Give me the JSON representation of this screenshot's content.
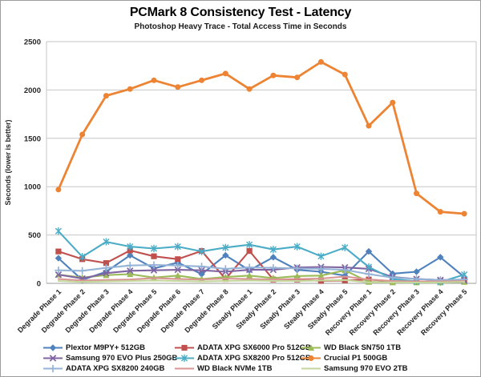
{
  "chart_data": {
    "type": "line",
    "title": "PCMark 8 Consistency Test - Latency",
    "subtitle": "Photoshop Heavy Trace - Total Access Time in Seconds",
    "ylabel": "Seconds (lower is better)",
    "xlabel": "",
    "ylim": [
      0,
      2500
    ],
    "ytick_interval": 500,
    "grid": "horizontal-only",
    "legend_position": "bottom",
    "categories": [
      "Degrade Phase 1",
      "Degrade Phase 2",
      "Degrade Phase 3",
      "Degrade Phase 4",
      "Degrade Phase 5",
      "Degrade Phase 6",
      "Degrade Phase 7",
      "Degrade Phase 8",
      "Steady Phase 1",
      "Steady Phase 2",
      "Steady Phase 3",
      "Steady Phase 4",
      "Steady Phase 5",
      "Recovery Phase 1",
      "Recovery Phase 2",
      "Recovery Phase 3",
      "Recovery Phase 4",
      "Recovery Phase 5"
    ],
    "series": [
      {
        "name": "Plextor M9PY+ 512GB",
        "color": "#4F81BD",
        "marker": "diamond",
        "values": [
          260,
          35,
          120,
          290,
          155,
          215,
          95,
          290,
          135,
          270,
          140,
          120,
          80,
          330,
          100,
          120,
          270,
          65
        ]
      },
      {
        "name": "ADATA XPG SX6000 Pro 512GB",
        "color": "#C0504D",
        "marker": "square",
        "values": [
          330,
          250,
          210,
          340,
          280,
          250,
          335,
          45,
          335,
          40,
          40,
          25,
          30,
          40,
          20,
          15,
          25,
          35
        ]
      },
      {
        "name": "WD Black SN750 1TB",
        "color": "#9BBB59",
        "marker": "triangle",
        "values": [
          90,
          60,
          85,
          95,
          60,
          80,
          45,
          65,
          80,
          55,
          75,
          80,
          135,
          15,
          10,
          10,
          10,
          15
        ]
      },
      {
        "name": "Samsung 970 EVO Plus 250GB",
        "color": "#8064A2",
        "marker": "x",
        "values": [
          90,
          50,
          105,
          130,
          135,
          140,
          135,
          120,
          140,
          140,
          165,
          170,
          165,
          150,
          65,
          45,
          35,
          30
        ]
      },
      {
        "name": "ADATA XPG SX8200 Pro 512GB",
        "color": "#4BACC6",
        "marker": "asterisk",
        "values": [
          540,
          275,
          430,
          380,
          360,
          380,
          330,
          370,
          400,
          350,
          380,
          280,
          370,
          170,
          45,
          20,
          15,
          90
        ]
      },
      {
        "name": "Crucial P1 500GB",
        "color": "#ED8433",
        "marker": "circle",
        "values": [
          970,
          1540,
          1940,
          2010,
          2100,
          2030,
          2100,
          2170,
          2010,
          2150,
          2130,
          2290,
          2160,
          1630,
          1870,
          930,
          740,
          720
        ]
      },
      {
        "name": "ADATA XPG SX8200 240GB",
        "color": "#95B3D7",
        "marker": "plus",
        "values": [
          135,
          130,
          160,
          185,
          190,
          185,
          175,
          150,
          165,
          160,
          155,
          150,
          140,
          95,
          60,
          45,
          35,
          40
        ]
      },
      {
        "name": "WD Black NVMe 1TB",
        "color": "#D99694",
        "marker": "none",
        "values": [
          45,
          30,
          35,
          40,
          55,
          45,
          40,
          50,
          45,
          40,
          45,
          50,
          70,
          40,
          25,
          20,
          20,
          25
        ]
      },
      {
        "name": "Samsung 970 EVO 2TB",
        "color": "#C3D69B",
        "marker": "none",
        "values": [
          25,
          15,
          20,
          25,
          30,
          25,
          20,
          25,
          30,
          25,
          25,
          30,
          35,
          10,
          10,
          8,
          10,
          15
        ]
      }
    ]
  },
  "colors": {
    "gridline": "#C6C6C6",
    "plot_border": "#C6C6C6",
    "axis_line": "#9A9A9A",
    "tick_text": "#262626",
    "outer_border": "#9C9C9C",
    "background": "#FFFFFF"
  }
}
